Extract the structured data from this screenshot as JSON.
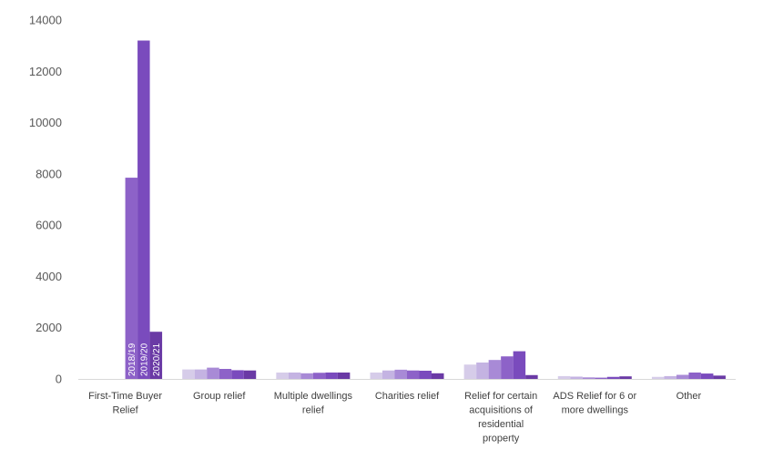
{
  "chart_data": {
    "type": "bar",
    "title": "",
    "xlabel": "",
    "ylabel": "",
    "ylim": [
      0,
      14000
    ],
    "yticks": [
      0,
      2000,
      4000,
      6000,
      8000,
      10000,
      12000,
      14000
    ],
    "grid": false,
    "legend": "none",
    "categories": [
      "First-Time Buyer Relief",
      "Group relief",
      "Multiple dwellings relief",
      "Charities relief",
      "Relief for certain acquisitions of residential property",
      "ADS Relief for 6 or more dwellings",
      "Other"
    ],
    "category_label_lines": [
      [
        "First-Time Buyer",
        "Relief"
      ],
      [
        "Group relief"
      ],
      [
        "Multiple dwellings",
        "relief"
      ],
      [
        "Charities relief"
      ],
      [
        "Relief for certain",
        "acquisitions of",
        "residential",
        "property"
      ],
      [
        "ADS Relief for 6 or",
        "more dwellings"
      ],
      [
        "Other"
      ]
    ],
    "series": [
      {
        "name": "",
        "color": "#d6cce9",
        "values": [
          null,
          370,
          250,
          250,
          560,
          110,
          80
        ]
      },
      {
        "name": "",
        "color": "#c4b3e2",
        "values": [
          null,
          370,
          250,
          330,
          640,
          90,
          110
        ]
      },
      {
        "name": "",
        "color": "#a88ad6",
        "values": [
          null,
          440,
          220,
          360,
          740,
          60,
          160
        ]
      },
      {
        "name": "2018/19",
        "color": "#8d62c8",
        "values": [
          7850,
          390,
          240,
          330,
          880,
          50,
          250
        ]
      },
      {
        "name": "2019/20",
        "color": "#7a4bbd",
        "values": [
          13200,
          340,
          250,
          320,
          1080,
          80,
          210
        ]
      },
      {
        "name": "2020/21",
        "color": "#6a3aa5",
        "values": [
          1840,
          330,
          250,
          220,
          150,
          100,
          130
        ]
      }
    ]
  }
}
